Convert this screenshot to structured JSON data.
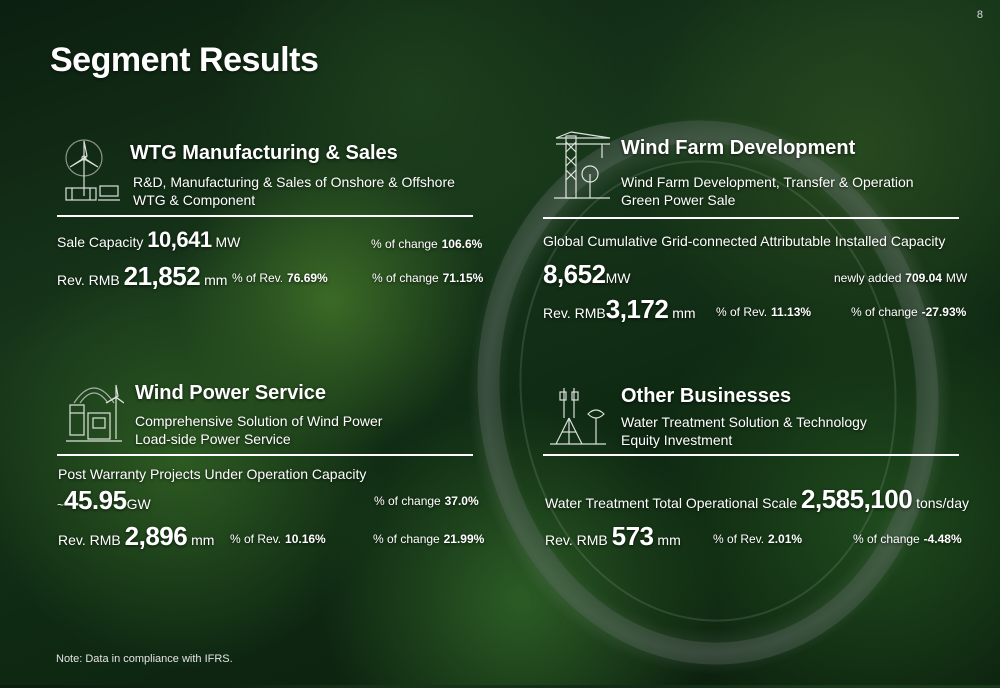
{
  "page": {
    "number": "8",
    "title": "Segment Results",
    "note": "Note: Data in compliance with IFRS."
  },
  "wtg": {
    "title": "WTG Manufacturing & Sales",
    "desc_line1": "R&D, Manufacturing & Sales of Onshore & Offshore",
    "desc_line2": "WTG & Component",
    "sale_capacity_label": "Sale Capacity",
    "sale_capacity_value": "10,641",
    "sale_capacity_unit": "MW",
    "change_label": "% of change",
    "sale_capacity_change": "106.6%",
    "rev_label": "Rev. RMB",
    "rev_value": "21,852",
    "rev_unit": "mm",
    "pct_rev_label": "% of Rev.",
    "pct_rev_value": "76.69%",
    "rev_change": "71.15%"
  },
  "wind_farm": {
    "title": "Wind Farm Development",
    "desc_line1": "Wind Farm Development, Transfer & Operation",
    "desc_line2": "Green Power Sale",
    "capacity_label": "Global Cumulative Grid-connected Attributable Installed Capacity",
    "capacity_value": "8,652",
    "capacity_unit": "MW",
    "newly_added_label": "newly added",
    "newly_added_value": "709.04",
    "newly_added_unit": "MW",
    "rev_label": "Rev. RMB",
    "rev_value": "3,172",
    "rev_unit": "mm",
    "pct_rev_label": "% of Rev.",
    "pct_rev_value": "11.13%",
    "change_label": "% of change",
    "rev_change": "-27.93%"
  },
  "wind_power_service": {
    "title": "Wind Power Service",
    "desc_line1": "Comprehensive Solution of Wind Power",
    "desc_line2": "Load-side Power Service",
    "capacity_label": "Post Warranty Projects Under Operation Capacity",
    "capacity_prefix": "~",
    "capacity_value": "45.95",
    "capacity_unit": "GW",
    "change_label": "% of change",
    "capacity_change": "37.0%",
    "rev_label": "Rev. RMB",
    "rev_value": "2,896",
    "rev_unit": "mm",
    "pct_rev_label": "% of Rev.",
    "pct_rev_value": "10.16%",
    "rev_change": "21.99%"
  },
  "other": {
    "title": "Other Businesses",
    "desc_line1": "Water Treatment Solution & Technology",
    "desc_line2": "Equity Investment",
    "scale_label": "Water Treatment Total Operational Scale",
    "scale_value": "2,585,100",
    "scale_unit": "tons/day",
    "rev_label": "Rev. RMB",
    "rev_value": "573",
    "rev_unit": "mm",
    "pct_rev_label": "% of Rev.",
    "pct_rev_value": "2.01%",
    "change_label": "% of change",
    "rev_change": "-4.48%"
  },
  "icons": [
    "wind-turbine-icon",
    "construction-crane-icon",
    "service-turbine-icon",
    "water-tower-icon"
  ]
}
